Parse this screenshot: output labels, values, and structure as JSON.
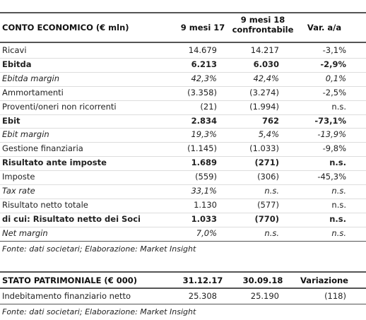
{
  "income": {
    "header": {
      "title": "CONTO ECONOMICO (€ mln)",
      "col1": "9 mesi 17",
      "col2": "9 mesi 18 confrontabile",
      "col3": "Var. a/a"
    },
    "rows": [
      [
        "Ricavi",
        "14.679",
        "14.217",
        "-3,1%"
      ],
      [
        "Ebitda",
        "6.213",
        "6.030",
        "-2,9%"
      ],
      [
        "Ebitda margin",
        "42,3%",
        "42,4%",
        "0,1%"
      ],
      [
        "Ammortamenti",
        "(3.358)",
        "(3.274)",
        "-2,5%"
      ],
      [
        "Proventi/oneri non ricorrenti",
        "(21)",
        "(1.994)",
        "n.s."
      ],
      [
        "Ebit",
        "2.834",
        "762",
        "-73,1%"
      ],
      [
        "Ebit margin",
        "19,3%",
        "5,4%",
        "-13,9%"
      ],
      [
        "Gestione finanziaria",
        "(1.145)",
        "(1.033)",
        "-9,8%"
      ],
      [
        "Risultato ante imposte",
        "1.689",
        "(271)",
        "n.s."
      ],
      [
        "Imposte",
        "(559)",
        "(306)",
        "-45,3%"
      ],
      [
        "Tax rate",
        "33,1%",
        "n.s.",
        "n.s."
      ],
      [
        "Risultato netto totale",
        "1.130",
        "(577)",
        "n.s."
      ],
      [
        "di cui: Risultato netto dei Soci",
        "1.033",
        "(770)",
        "n.s."
      ],
      [
        "Net margin",
        "7,0%",
        "n.s.",
        "n.s."
      ]
    ],
    "source": "Fonte: dati societari; Elaborazione: Market Insight"
  },
  "balance": {
    "header": {
      "title": "STATO PATRIMONIALE (€ 000)",
      "col1": "31.12.17",
      "col2": "30.09.18",
      "col3": "Variazione"
    },
    "rows": [
      [
        "Indebitamento finanziario netto",
        "25.308",
        "25.190",
        "(118)"
      ]
    ],
    "source": "Fonte: dati societari; Elaborazione: Market Insight"
  }
}
